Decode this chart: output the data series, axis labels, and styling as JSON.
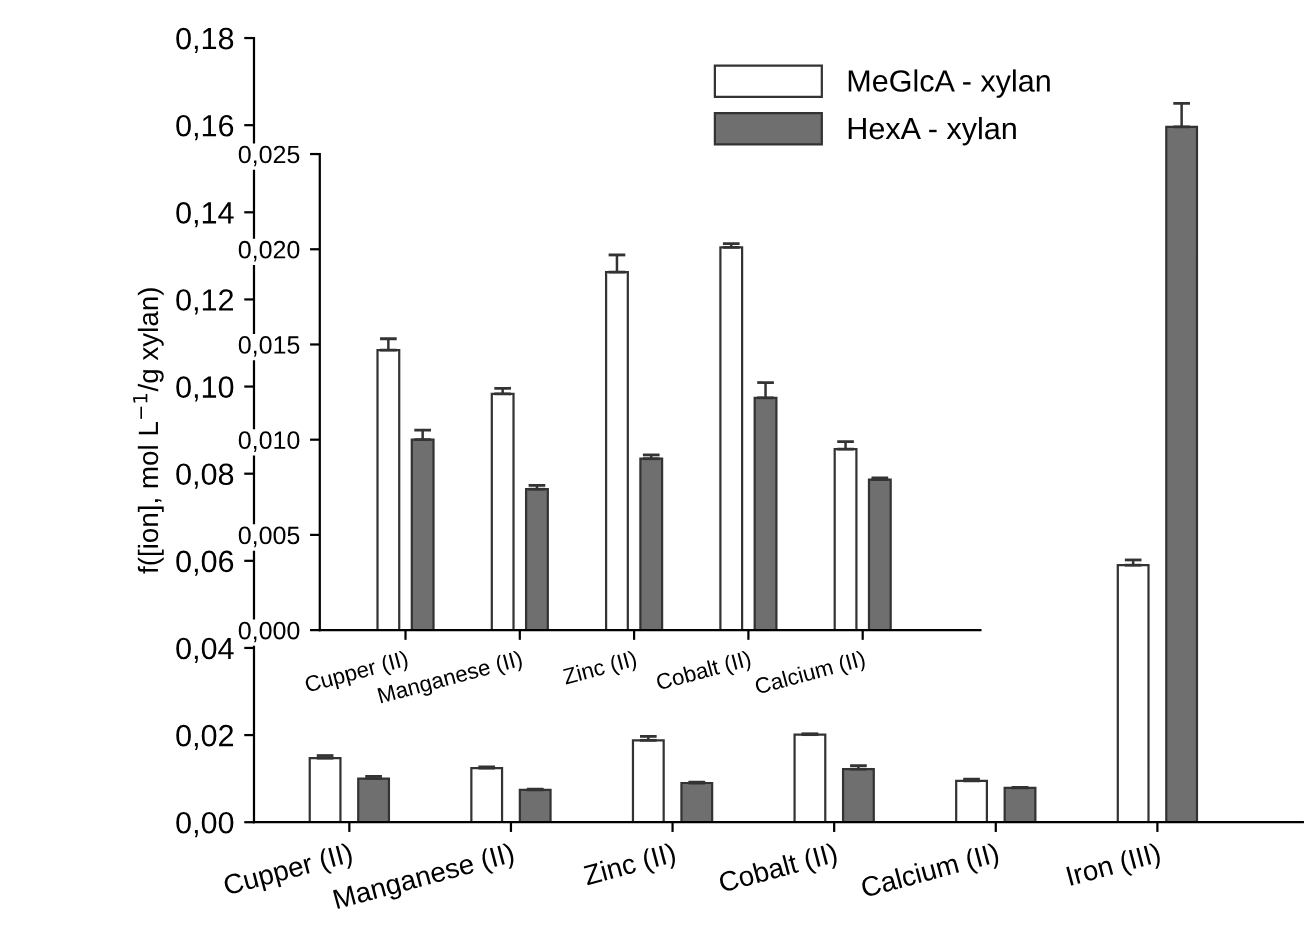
{
  "chart_data": [
    {
      "type": "bar",
      "ylabel": "f([ion], mol L$^{−1}$/g xylan)",
      "categories": [
        "Cupper (II)",
        "Manganese (II)",
        "Zinc (II)",
        "Cobalt (II)",
        "Calcium (II)",
        "Iron (III)"
      ],
      "series": [
        {
          "name": "MeGlcA - xylan",
          "color": "#ffffff",
          "values": [
            0.0147,
            0.0124,
            0.0188,
            0.0201,
            0.0095,
            0.059
          ],
          "errors": [
            [
              0.0147,
              0.0153
            ],
            [
              0.0124,
              0.0127
            ],
            [
              0.0188,
              0.0197
            ],
            [
              0.0201,
              0.0203
            ],
            [
              0.0095,
              0.0099
            ],
            [
              0.059,
              0.0602
            ]
          ]
        },
        {
          "name": "HexA - xylan",
          "color": "#6f6f6f",
          "values": [
            0.01,
            0.0074,
            0.009,
            0.0122,
            0.0079,
            0.1596
          ],
          "errors": [
            [
              0.01,
              0.0105
            ],
            [
              0.0074,
              0.0076
            ],
            [
              0.009,
              0.0092
            ],
            [
              0.0122,
              0.013
            ],
            [
              0.0079,
              0.008
            ],
            [
              0.1596,
              0.165
            ]
          ]
        }
      ],
      "ylim": [
        0,
        0.18
      ],
      "yticks": [
        {
          "value": 0,
          "label": "0,00"
        },
        {
          "value": 0.02,
          "label": "0,02"
        },
        {
          "value": 0.04,
          "label": "0,04"
        },
        {
          "value": 0.06,
          "label": "0,06"
        },
        {
          "value": 0.08,
          "label": "0,08"
        },
        {
          "value": 0.1,
          "label": "0,10"
        },
        {
          "value": 0.12,
          "label": "0,12"
        },
        {
          "value": 0.14,
          "label": "0,14"
        },
        {
          "value": 0.16,
          "label": "0,16"
        },
        {
          "value": 0.18,
          "label": "0,18"
        }
      ],
      "legend": "top",
      "grid": false
    },
    {
      "type": "bar",
      "categories": [
        "Cupper (II)",
        "Manganese (II)",
        "Zinc (II)",
        "Cobalt (II)",
        "Calcium (II)"
      ],
      "series": [
        {
          "color": "#ffffff",
          "values": [
            0.0147,
            0.0124,
            0.0188,
            0.0201,
            0.0095
          ],
          "errors": [
            [
              0.0147,
              0.0153
            ],
            [
              0.0124,
              0.0127
            ],
            [
              0.0188,
              0.0197
            ],
            [
              0.0201,
              0.0203
            ],
            [
              0.0095,
              0.0099
            ]
          ]
        },
        {
          "color": "#6f6f6f",
          "values": [
            0.01,
            0.0074,
            0.009,
            0.0122,
            0.0079
          ],
          "errors": [
            [
              0.01,
              0.0105
            ],
            [
              0.0074,
              0.0076
            ],
            [
              0.009,
              0.0092
            ],
            [
              0.0122,
              0.013
            ],
            [
              0.0079,
              0.008
            ]
          ]
        }
      ],
      "ylim": [
        0,
        0.025
      ],
      "yticks": [
        {
          "value": 0,
          "label": "0,000"
        },
        {
          "value": 0.005,
          "label": "0,005"
        },
        {
          "value": 0.01,
          "label": "0,010"
        },
        {
          "value": 0.015,
          "label": "0,015"
        },
        {
          "value": 0.02,
          "label": "0,020"
        },
        {
          "value": 0.025,
          "label": "0,025"
        }
      ],
      "grid": false
    }
  ]
}
